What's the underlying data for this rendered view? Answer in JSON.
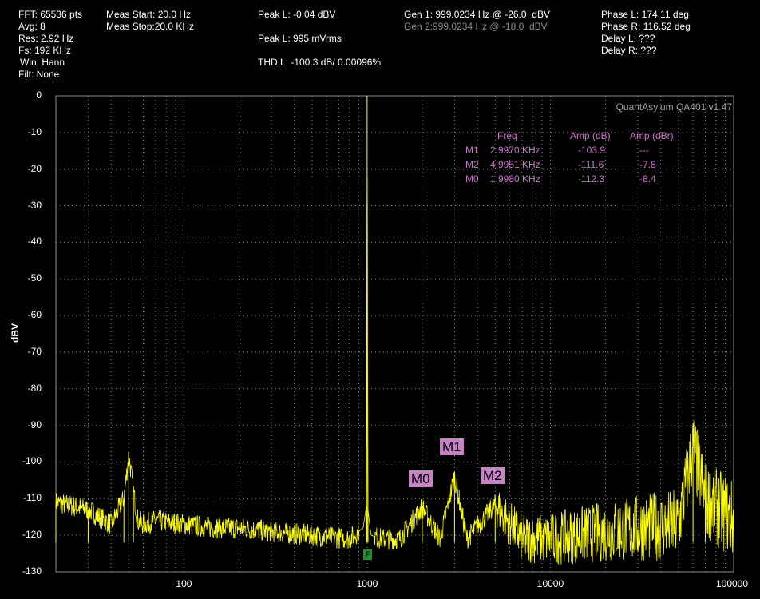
{
  "header": {
    "fft": "FFT: 65536 pts",
    "avg": "Avg: 8",
    "res": "Res: 2.92 Hz",
    "fs": "Fs: 192 KHz",
    "win": "Win: Hann",
    "filt": "Filt: None",
    "meas_start": "Meas Start: 20.0 Hz",
    "meas_stop": "Meas Stop:20.0 KHz",
    "peak_l_dbv": "Peak L: -0.04 dBV",
    "peak_l_mvrms": "Peak L: 995 mVrms",
    "thd_l": "THD L: -100.3 dB/ 0.00096%",
    "gen1": "Gen 1: 999.0234 Hz @ -26.0  dBV",
    "gen2": "Gen 2:999.0234 Hz @ -18.0  dBV",
    "phase_l": "Phase L: 174.11 deg",
    "phase_r": "Phase R: 116.52 deg",
    "delay_l": "Delay L: ???",
    "delay_r": "Delay R: ???"
  },
  "brand": "QuantAsylum QA401 v1.47",
  "marker_table": {
    "headers": [
      "Freq",
      "Amp (dB)",
      "Amp (dBr)"
    ],
    "rows": [
      {
        "name": "M1",
        "freq": "2.9970 KHz",
        "amp_db": "-103.9",
        "amp_dbr": "---"
      },
      {
        "name": "M2",
        "freq": "4.9951 KHz",
        "amp_db": "-111.6",
        "amp_dbr": "-7.8"
      },
      {
        "name": "M0",
        "freq": "1.9980 KHz",
        "amp_db": "-112.3",
        "amp_dbr": "-8.4"
      }
    ]
  },
  "markers": {
    "m0": "M0",
    "m1": "M1",
    "m2": "M2",
    "f": "F"
  },
  "colors": {
    "trace": "#ffff00",
    "grid": "#8a8a8a",
    "marker_text": "#d070d0",
    "marker_label_bg": "#c882c8",
    "f_marker": "#1e8f2a"
  },
  "chart_data": {
    "type": "line",
    "title": "",
    "xlabel": "",
    "ylabel": "dBV",
    "xscale": "log",
    "xlim": [
      20,
      100000
    ],
    "ylim": [
      -130,
      0
    ],
    "grid": true,
    "x_ticks": [
      "100",
      "1000",
      "10000",
      "100000"
    ],
    "y_ticks": [
      "0",
      "-10",
      "-20",
      "-30",
      "-40",
      "-50",
      "-60",
      "-70",
      "-80",
      "-90",
      "-100",
      "-110",
      "-120",
      "-130"
    ],
    "series": [
      {
        "x": [
          20,
          30,
          40,
          47,
          50,
          53,
          56,
          60,
          70,
          100,
          150,
          200,
          300,
          500,
          800,
          950,
          990,
          999,
          1010,
          1050,
          1200,
          1500,
          1998,
          2500,
          2997,
          3500,
          4995,
          7000,
          10000,
          20000,
          30000,
          50000,
          60000,
          70000,
          100000
        ],
        "y": [
          -111,
          -113,
          -117,
          -110,
          -98,
          -108,
          -116,
          -117,
          -116,
          -117,
          -118,
          -118,
          -119,
          -120,
          -121,
          -118,
          -112,
          -0.04,
          -113,
          -120,
          -121,
          -121,
          -112.3,
          -121,
          -103.9,
          -121,
          -111.6,
          -121,
          -121,
          -119,
          -118,
          -117,
          -96,
          -110,
          -116
        ]
      }
    ]
  }
}
